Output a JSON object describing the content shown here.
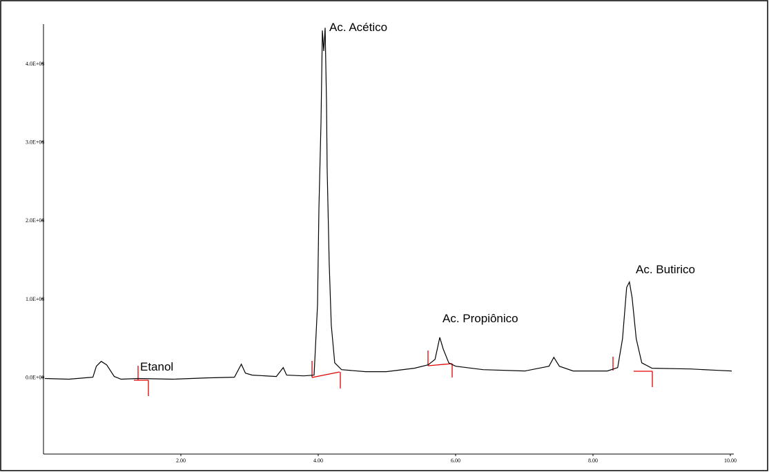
{
  "chart_data": {
    "type": "line",
    "x": [
      0.02,
      0.37,
      0.72,
      0.77,
      0.84,
      0.92,
      1.03,
      1.13,
      1.38,
      1.88,
      2.38,
      2.78,
      2.88,
      2.94,
      3.04,
      3.39,
      3.49,
      3.54,
      3.79,
      3.94,
      3.99,
      4.01,
      4.04,
      4.06,
      4.08,
      4.1,
      4.12,
      4.13,
      4.16,
      4.19,
      4.24,
      4.34,
      4.69,
      4.99,
      5.4,
      5.6,
      5.7,
      5.77,
      5.82,
      5.9,
      6.0,
      6.4,
      7.01,
      7.36,
      7.43,
      7.51,
      7.71,
      8.21,
      8.36,
      8.43,
      8.49,
      8.53,
      8.57,
      8.63,
      8.71,
      8.86,
      9.42,
      9.82,
      10.02
    ],
    "series": [
      {
        "color": "#000000",
        "values": [
          -1700000,
          -2600000,
          0,
          14000000,
          20100000,
          15700000,
          870000,
          -2600000,
          -1700000,
          -2600000,
          -870000,
          0,
          16600000,
          5200000,
          2600000,
          870000,
          12200000,
          2600000,
          1700000,
          2600000,
          92600000,
          214800000,
          324000000,
          441900000,
          415700000,
          445400000,
          350200000,
          267200000,
          145000000,
          66400000,
          18300000,
          9600000,
          7000000,
          7000000,
          11400000,
          15700000,
          22700000,
          50700000,
          35800000,
          18300000,
          14000000,
          9600000,
          7900000,
          14000000,
          25300000,
          14000000,
          7900000,
          7900000,
          12200000,
          48900000,
          114400000,
          121400000,
          101300000,
          48900000,
          18300000,
          11400000,
          10500000,
          8700000,
          7900000
        ]
      }
    ],
    "xlim": [
      0,
      10.05
    ],
    "ylim": [
      -98000000,
      450000000
    ],
    "xticks": [
      {
        "value": 2,
        "label": "2.00"
      },
      {
        "value": 4,
        "label": "4.00"
      },
      {
        "value": 6,
        "label": "6.00"
      },
      {
        "value": 8,
        "label": "8.00"
      },
      {
        "value": 10,
        "label": "10.00"
      }
    ],
    "yticks": [
      {
        "value": 0,
        "label": "0.0E+00"
      },
      {
        "value": 100000000,
        "label": "1.0E+08"
      },
      {
        "value": 200000000,
        "label": "2.0E+08"
      },
      {
        "value": 300000000,
        "label": "3.0E+08"
      },
      {
        "value": 400000000,
        "label": "4.0E+08"
      }
    ],
    "annotations": [
      "Ac. Acético",
      "Etanol",
      "Ac. Propiônico",
      "Ac. Butirico"
    ]
  }
}
